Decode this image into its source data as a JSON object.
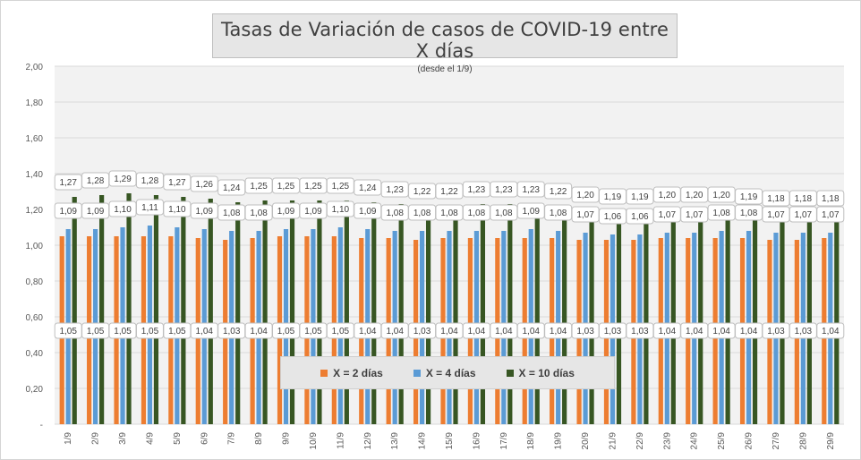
{
  "chart_data": {
    "type": "bar",
    "title": "Tasas de Variación de casos de COVID-19 entre X días",
    "subtitle": "(desde el 1/9)",
    "categories": [
      "1/9",
      "2/9",
      "3/9",
      "4/9",
      "5/9",
      "6/9",
      "7/9",
      "8/9",
      "9/9",
      "10/9",
      "11/9",
      "12/9",
      "13/9",
      "14/9",
      "15/9",
      "16/9",
      "17/9",
      "18/9",
      "19/9",
      "20/9",
      "21/9",
      "22/9",
      "23/9",
      "24/9",
      "25/9",
      "26/9",
      "27/9",
      "28/9",
      "29/9"
    ],
    "series": [
      {
        "name": "X = 2 días",
        "color": "#ed7d31",
        "values": [
          1.05,
          1.05,
          1.05,
          1.05,
          1.05,
          1.04,
          1.03,
          1.04,
          1.05,
          1.05,
          1.05,
          1.04,
          1.04,
          1.03,
          1.04,
          1.04,
          1.04,
          1.04,
          1.04,
          1.03,
          1.03,
          1.03,
          1.04,
          1.04,
          1.04,
          1.04,
          1.03,
          1.03,
          1.04
        ],
        "labels": [
          "1,05",
          "1,05",
          "1,05",
          "1,05",
          "1,05",
          "1,04",
          "1,03",
          "1,04",
          "1,05",
          "1,05",
          "1,05",
          "1,04",
          "1,04",
          "1,03",
          "1,04",
          "1,04",
          "1,04",
          "1,04",
          "1,04",
          "1,03",
          "1,03",
          "1,03",
          "1,04",
          "1,04",
          "1,04",
          "1,04",
          "1,03",
          "1,03",
          "1,04"
        ]
      },
      {
        "name": "X = 4 días",
        "color": "#5b9bd5",
        "values": [
          1.09,
          1.09,
          1.1,
          1.11,
          1.1,
          1.09,
          1.08,
          1.08,
          1.09,
          1.09,
          1.1,
          1.09,
          1.08,
          1.08,
          1.08,
          1.08,
          1.08,
          1.09,
          1.08,
          1.07,
          1.06,
          1.06,
          1.07,
          1.07,
          1.08,
          1.08,
          1.07,
          1.07,
          1.07
        ],
        "labels": [
          "1,09",
          "1,09",
          "1,10",
          "1,11",
          "1,10",
          "1,09",
          "1,08",
          "1,08",
          "1,09",
          "1,09",
          "1,10",
          "1,09",
          "1,08",
          "1,08",
          "1,08",
          "1,08",
          "1,08",
          "1,09",
          "1,08",
          "1,07",
          "1,06",
          "1,06",
          "1,07",
          "1,07",
          "1,08",
          "1,08",
          "1,07",
          "1,07",
          "1,07"
        ]
      },
      {
        "name": "X = 10 días",
        "color": "#375623",
        "values": [
          1.27,
          1.28,
          1.29,
          1.28,
          1.27,
          1.26,
          1.24,
          1.25,
          1.25,
          1.25,
          1.25,
          1.24,
          1.23,
          1.22,
          1.22,
          1.23,
          1.23,
          1.23,
          1.22,
          1.2,
          1.19,
          1.19,
          1.2,
          1.2,
          1.2,
          1.19,
          1.18,
          1.18,
          1.18
        ],
        "labels": [
          "1,27",
          "1,28",
          "1,29",
          "1,28",
          "1,27",
          "1,26",
          "1,24",
          "1,25",
          "1,25",
          "1,25",
          "1,25",
          "1,24",
          "1,23",
          "1,22",
          "1,22",
          "1,23",
          "1,23",
          "1,23",
          "1,22",
          "1,20",
          "1,19",
          "1,19",
          "1,20",
          "1,20",
          "1,20",
          "1,19",
          "1,18",
          "1,18",
          "1,18"
        ]
      }
    ],
    "ylim": [
      0,
      2.0
    ],
    "yticks": [
      0,
      0.2,
      0.4,
      0.6,
      0.8,
      1.0,
      1.2,
      1.4,
      1.6,
      1.8,
      2.0
    ],
    "ytick_labels": [
      "-",
      "0,20",
      "0,40",
      "0,60",
      "0,80",
      "1,00",
      "1,20",
      "1,40",
      "1,60",
      "1,80",
      "2,00"
    ],
    "grid": true,
    "legend_position": "bottom-center",
    "plot_background": "#f2f2f2"
  }
}
